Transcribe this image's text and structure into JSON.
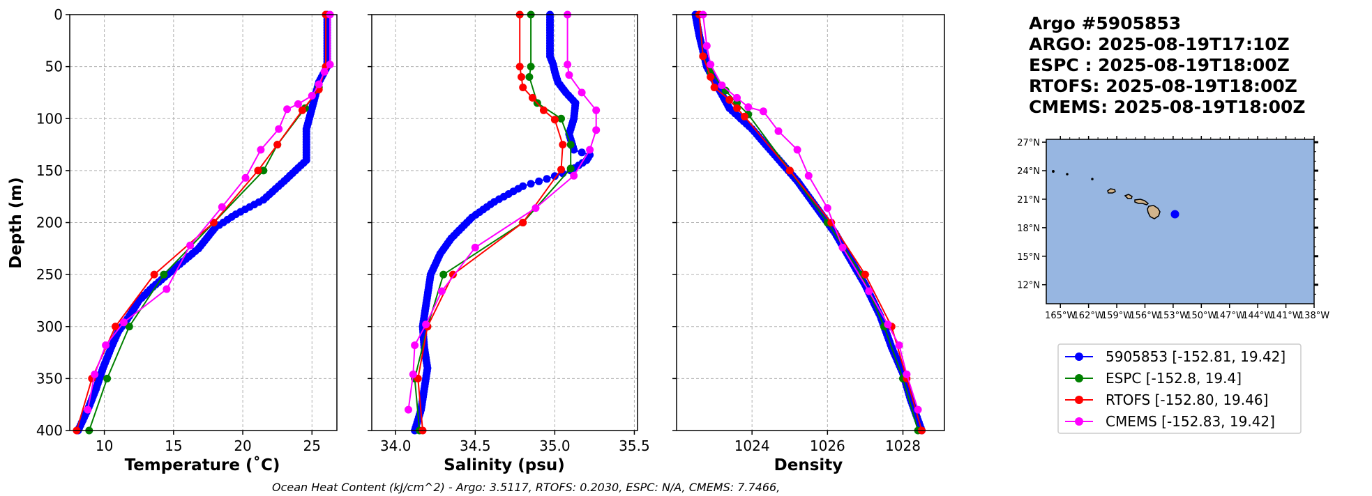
{
  "title_lines": [
    "Argo #5905853",
    "ARGO: 2025-08-19T17:10Z",
    "ESPC : 2025-08-19T18:00Z",
    "RTOFS: 2025-08-19T18:00Z",
    "CMEMS: 2025-08-19T18:00Z"
  ],
  "footer": "Ocean Heat Content (kJ/cm^2) - Argo: 3.5117,  RTOFS: 0.2030,  ESPC: N/A,  CMEMS: 7.7466,",
  "colors": {
    "argo": "#0000ff",
    "espc": "#008000",
    "rtofs": "#ff0000",
    "cmems": "#ff00ff",
    "ocean": "#97b6e1",
    "land": "#d2b48c"
  },
  "legend": [
    {
      "label": "5905853 [-152.81, 19.42]",
      "color": "#0000ff"
    },
    {
      "label": "ESPC [-152.8, 19.4]",
      "color": "#008000"
    },
    {
      "label": "RTOFS [-152.80, 19.46]",
      "color": "#ff0000"
    },
    {
      "label": "CMEMS [-152.83, 19.42]",
      "color": "#ff00ff"
    }
  ],
  "map": {
    "lon_ticks": [
      "165°W",
      "162°W",
      "159°W",
      "156°W",
      "153°W",
      "150°W",
      "147°W",
      "144°W",
      "141°W",
      "138°W"
    ],
    "lat_ticks": [
      "27°N",
      "24°N",
      "21°N",
      "18°N",
      "15°N",
      "12°N"
    ],
    "float_position": {
      "lon": -152.81,
      "lat": 19.42
    }
  },
  "chart_data": [
    {
      "type": "line",
      "xlabel": "Temperature (˚C)",
      "ylabel": "Depth (m)",
      "xlim": [
        7.5,
        26.8
      ],
      "ylim": [
        400,
        0
      ],
      "xticks": [
        10,
        15,
        20,
        25
      ],
      "yticks": [
        0,
        50,
        100,
        150,
        200,
        250,
        300,
        350,
        400
      ],
      "series": [
        {
          "name": "5905853",
          "color": "#0000ff",
          "dense": true,
          "points": [
            [
              26.1,
              0
            ],
            [
              26.1,
              50
            ],
            [
              25.5,
              65
            ],
            [
              25.0,
              90
            ],
            [
              24.6,
              110
            ],
            [
              24.6,
              140
            ],
            [
              23.0,
              160
            ],
            [
              21.5,
              178
            ],
            [
              19.5,
              192
            ],
            [
              18.0,
              205
            ],
            [
              16.8,
              225
            ],
            [
              15.0,
              245
            ],
            [
              13.5,
              262
            ],
            [
              12.5,
              275
            ],
            [
              11.8,
              290
            ],
            [
              11.0,
              305
            ],
            [
              10.5,
              320
            ],
            [
              9.9,
              340
            ],
            [
              9.4,
              360
            ],
            [
              8.8,
              380
            ],
            [
              8.1,
              400
            ]
          ]
        },
        {
          "name": "ESPC",
          "color": "#008000",
          "points": [
            [
              26.0,
              0
            ],
            [
              26.0,
              50
            ],
            [
              25.5,
              70
            ],
            [
              24.5,
              90
            ],
            [
              22.5,
              125
            ],
            [
              21.5,
              150
            ],
            [
              17.9,
              200
            ],
            [
              14.3,
              250
            ],
            [
              11.8,
              300
            ],
            [
              10.2,
              350
            ],
            [
              8.9,
              400
            ]
          ]
        },
        {
          "name": "RTOFS",
          "color": "#ff0000",
          "points": [
            [
              26.0,
              0
            ],
            [
              26.0,
              50
            ],
            [
              25.5,
              72
            ],
            [
              24.3,
              92
            ],
            [
              22.5,
              125
            ],
            [
              21.1,
              150
            ],
            [
              17.9,
              200
            ],
            [
              13.6,
              250
            ],
            [
              10.8,
              300
            ],
            [
              9.1,
              350
            ],
            [
              8.0,
              400
            ]
          ]
        },
        {
          "name": "CMEMS",
          "color": "#ff00ff",
          "points": [
            [
              26.3,
              0
            ],
            [
              26.3,
              48
            ],
            [
              25.9,
              55
            ],
            [
              25.5,
              67
            ],
            [
              25.0,
              78
            ],
            [
              24.0,
              86
            ],
            [
              23.2,
              91
            ],
            [
              22.6,
              110
            ],
            [
              21.3,
              130
            ],
            [
              20.2,
              157
            ],
            [
              18.5,
              185
            ],
            [
              16.2,
              222
            ],
            [
              14.5,
              264
            ],
            [
              11.4,
              296
            ],
            [
              10.1,
              318
            ],
            [
              9.3,
              346
            ],
            [
              8.8,
              380
            ]
          ]
        }
      ]
    },
    {
      "type": "line",
      "xlabel": "Salinity (psu)",
      "ylabel": "",
      "xlim": [
        33.85,
        35.52
      ],
      "ylim": [
        400,
        0
      ],
      "xticks": [
        34.0,
        34.5,
        35.0,
        35.5
      ],
      "yticks": [
        0,
        50,
        100,
        150,
        200,
        250,
        300,
        350,
        400
      ],
      "series": [
        {
          "name": "5905853",
          "color": "#0000ff",
          "dense": true,
          "points": [
            [
              34.97,
              0
            ],
            [
              34.97,
              40
            ],
            [
              34.99,
              48
            ],
            [
              35.0,
              55
            ],
            [
              35.02,
              65
            ],
            [
              35.07,
              75
            ],
            [
              35.13,
              85
            ],
            [
              35.12,
              100
            ],
            [
              35.09,
              115
            ],
            [
              35.12,
              130
            ],
            [
              35.22,
              135
            ],
            [
              35.2,
              140
            ],
            [
              35.1,
              150
            ],
            [
              34.95,
              158
            ],
            [
              34.8,
              165
            ],
            [
              34.62,
              180
            ],
            [
              34.48,
              195
            ],
            [
              34.35,
              215
            ],
            [
              34.28,
              230
            ],
            [
              34.22,
              250
            ],
            [
              34.2,
              270
            ],
            [
              34.17,
              300
            ],
            [
              34.18,
              320
            ],
            [
              34.2,
              340
            ],
            [
              34.18,
              360
            ],
            [
              34.16,
              380
            ],
            [
              34.12,
              400
            ]
          ]
        },
        {
          "name": "ESPC",
          "color": "#008000",
          "points": [
            [
              34.85,
              0
            ],
            [
              34.85,
              50
            ],
            [
              34.84,
              60
            ],
            [
              34.89,
              85
            ],
            [
              35.04,
              100
            ],
            [
              35.1,
              125
            ],
            [
              35.1,
              148
            ],
            [
              34.8,
              200
            ],
            [
              34.3,
              250
            ],
            [
              34.2,
              300
            ],
            [
              34.12,
              350
            ],
            [
              34.15,
              400
            ]
          ]
        },
        {
          "name": "RTOFS",
          "color": "#ff0000",
          "points": [
            [
              34.78,
              0
            ],
            [
              34.78,
              50
            ],
            [
              34.79,
              60
            ],
            [
              34.8,
              70
            ],
            [
              34.86,
              80
            ],
            [
              34.93,
              92
            ],
            [
              35.0,
              101
            ],
            [
              35.05,
              125
            ],
            [
              35.04,
              149
            ],
            [
              34.8,
              200
            ],
            [
              34.36,
              250
            ],
            [
              34.2,
              300
            ],
            [
              34.14,
              350
            ],
            [
              34.17,
              400
            ]
          ]
        },
        {
          "name": "CMEMS",
          "color": "#ff00ff",
          "points": [
            [
              35.08,
              0
            ],
            [
              35.08,
              48
            ],
            [
              35.09,
              58
            ],
            [
              35.17,
              75
            ],
            [
              35.26,
              92
            ],
            [
              35.26,
              111
            ],
            [
              35.22,
              130
            ],
            [
              35.12,
              155
            ],
            [
              34.88,
              186
            ],
            [
              34.5,
              224
            ],
            [
              34.29,
              266
            ],
            [
              34.19,
              298
            ],
            [
              34.12,
              318
            ],
            [
              34.11,
              346
            ],
            [
              34.08,
              380
            ]
          ]
        }
      ]
    },
    {
      "type": "line",
      "xlabel": "Density",
      "ylabel": "",
      "xlim": [
        1022.0,
        1029.1
      ],
      "ylim": [
        400,
        0
      ],
      "xticks": [
        1024,
        1026,
        1028
      ],
      "yticks": [
        0,
        50,
        100,
        150,
        200,
        250,
        300,
        350,
        400
      ],
      "series": [
        {
          "name": "5905853",
          "color": "#0000ff",
          "dense": true,
          "points": [
            [
              1022.5,
              0
            ],
            [
              1022.6,
              20
            ],
            [
              1022.8,
              50
            ],
            [
              1023.1,
              70
            ],
            [
              1023.4,
              90
            ],
            [
              1024.0,
              110
            ],
            [
              1024.6,
              135
            ],
            [
              1025.2,
              160
            ],
            [
              1025.8,
              190
            ],
            [
              1026.2,
              210
            ],
            [
              1026.6,
              235
            ],
            [
              1027.0,
              260
            ],
            [
              1027.4,
              290
            ],
            [
              1027.7,
              320
            ],
            [
              1028.0,
              345
            ],
            [
              1028.2,
              370
            ],
            [
              1028.4,
              390
            ],
            [
              1028.5,
              400
            ]
          ]
        },
        {
          "name": "ESPC",
          "color": "#008000",
          "points": [
            [
              1022.6,
              0
            ],
            [
              1022.7,
              40
            ],
            [
              1022.9,
              55
            ],
            [
              1023.3,
              73
            ],
            [
              1023.6,
              85
            ],
            [
              1023.9,
              96
            ],
            [
              1025.0,
              150
            ],
            [
              1026.0,
              200
            ],
            [
              1026.9,
              250
            ],
            [
              1027.5,
              300
            ],
            [
              1028.0,
              350
            ],
            [
              1028.4,
              400
            ]
          ]
        },
        {
          "name": "RTOFS",
          "color": "#ff0000",
          "points": [
            [
              1022.6,
              0
            ],
            [
              1022.7,
              40
            ],
            [
              1022.9,
              60
            ],
            [
              1023.0,
              70
            ],
            [
              1023.4,
              82
            ],
            [
              1023.6,
              90
            ],
            [
              1023.8,
              98
            ],
            [
              1025.0,
              150
            ],
            [
              1026.1,
              200
            ],
            [
              1027.0,
              250
            ],
            [
              1027.7,
              300
            ],
            [
              1028.1,
              350
            ],
            [
              1028.5,
              400
            ]
          ]
        },
        {
          "name": "CMEMS",
          "color": "#ff00ff",
          "points": [
            [
              1022.7,
              0
            ],
            [
              1022.8,
              30
            ],
            [
              1022.9,
              48
            ],
            [
              1023.2,
              68
            ],
            [
              1023.6,
              80
            ],
            [
              1023.9,
              89
            ],
            [
              1024.3,
              93
            ],
            [
              1024.7,
              112
            ],
            [
              1025.2,
              130
            ],
            [
              1025.5,
              155
            ],
            [
              1026.0,
              186
            ],
            [
              1026.4,
              224
            ],
            [
              1027.1,
              266
            ],
            [
              1027.6,
              298
            ],
            [
              1027.9,
              318
            ],
            [
              1028.1,
              346
            ],
            [
              1028.4,
              380
            ]
          ]
        }
      ]
    }
  ]
}
